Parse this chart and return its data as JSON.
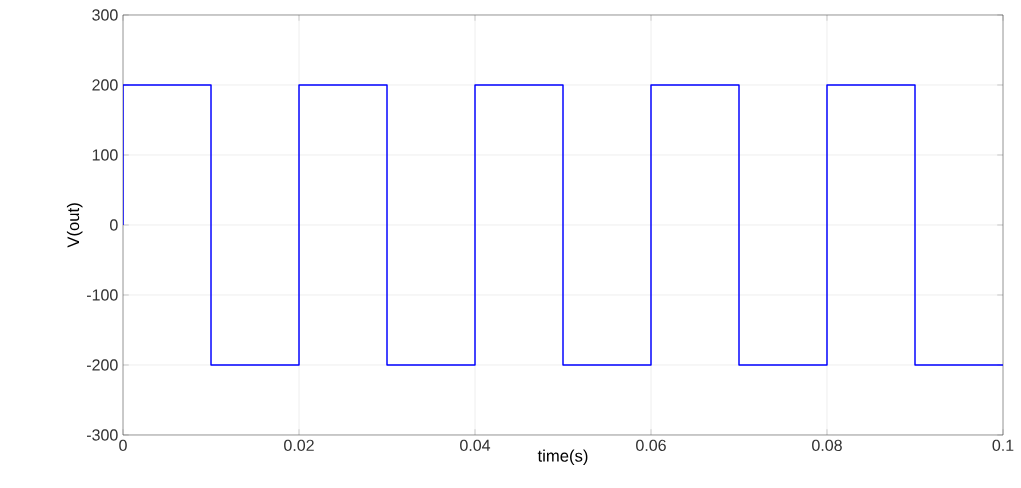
{
  "chart_data": {
    "type": "line",
    "xlabel": "time(s)",
    "ylabel": "V(out)",
    "x": [
      0,
      0,
      0.01,
      0.01,
      0.02,
      0.02,
      0.03,
      0.03,
      0.04,
      0.04,
      0.05,
      0.05,
      0.06,
      0.06,
      0.07,
      0.07,
      0.08,
      0.08,
      0.09,
      0.09,
      0.1
    ],
    "series": [
      {
        "color": "#0000ff",
        "values": [
          0,
          200,
          200,
          -200,
          -200,
          200,
          200,
          -200,
          -200,
          200,
          200,
          -200,
          -200,
          200,
          200,
          -200,
          -200,
          200,
          200,
          -200,
          -200
        ]
      }
    ],
    "xlim": [
      0,
      0.1
    ],
    "ylim": [
      -300,
      300
    ],
    "xticks": [
      0,
      0.02,
      0.04,
      0.06,
      0.08,
      0.1
    ],
    "yticks": [
      -300,
      -200,
      -100,
      0,
      100,
      200,
      300
    ],
    "grid": true
  }
}
